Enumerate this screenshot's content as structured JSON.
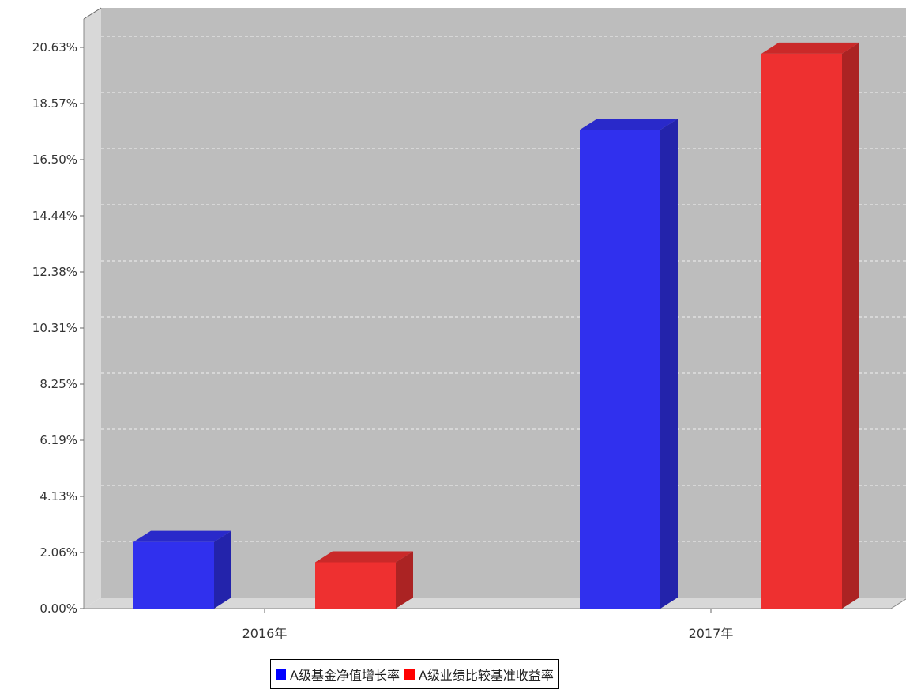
{
  "chart_data": {
    "type": "bar",
    "categories": [
      "2016年",
      "2017年"
    ],
    "series": [
      {
        "name": "A级基金净值增长率",
        "values": [
          2.45,
          17.6
        ],
        "color": "#3030ee"
      },
      {
        "name": "A级业绩比较基准收益率",
        "values": [
          1.7,
          20.4
        ],
        "color": "#ee3030"
      }
    ],
    "yticks": [
      "0.00%",
      "2.06%",
      "4.13%",
      "6.19%",
      "8.25%",
      "10.31%",
      "12.38%",
      "14.44%",
      "16.50%",
      "18.57%",
      "20.63%"
    ],
    "ylim": [
      0,
      20.63
    ],
    "grid": true,
    "legend_position": "bottom"
  }
}
